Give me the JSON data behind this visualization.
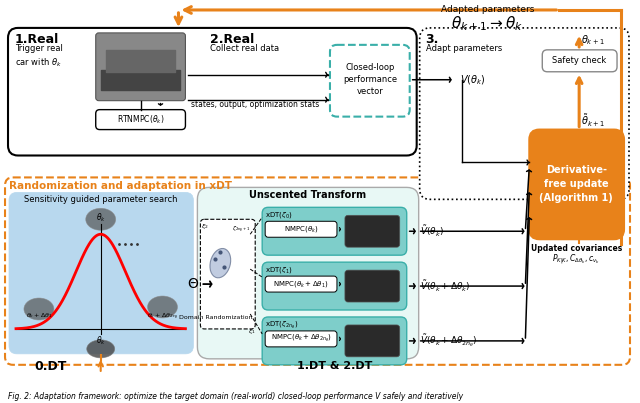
{
  "fig_width": 6.4,
  "fig_height": 4.03,
  "dpi": 100,
  "bg_color": "#ffffff",
  "orange_color": "#E8821A",
  "teal_color": "#3AAFA9",
  "light_teal_bg": "#7ECECA",
  "blue_bg": "#B8D8EE",
  "black_color": "#000000",
  "caption": "Fig. 2: Adaptation framework: optimize the target domain (real-world) closed-loop performance V safely and iteratively",
  "title_adapted": "Adapted parameters",
  "theta_adapt": "$\\theta_{k+1} \\rightarrow \\theta_k$",
  "label_1real": "1.Real",
  "label_1real_sub": "Trigger real\ncar with $\\theta_k$",
  "label_2real": "2.Real",
  "label_2real_sub": "Collect real data",
  "label_3": "3.",
  "label_3_sub": "Adapt parameters",
  "label_rtnmpc": "RTNMPC($\\theta_k$)",
  "label_states": "states, output, optimization stats",
  "label_clpv": "Closed-loop\nperformance\nvector",
  "label_vtheta": "$V(\\theta_k)$",
  "label_safety": "Safety check",
  "label_theta_k1": "$\\theta_{k+1}$",
  "label_theta_tilde": "$\\tilde{\\theta}_{k+1}$",
  "label_deriv_free": "Derivative-\nfree update\n(Algorithm 1)",
  "label_updated_cov": "Updated covariances",
  "label_cov_sub": "$P_{K|K}, C_{\\Delta\\theta_k}, c_{v_k}$",
  "label_rand_title": "Randomization and adaptation in xDT",
  "label_unscented": "Unscented Transform",
  "label_sensitivity": "Sensitivity guided parameter search",
  "label_0dt": "0.DT",
  "label_12dt": "1.DT & 2.DT",
  "label_theta_big": "$\\Theta$",
  "label_domain_rand": "Domain Randomization",
  "label_vtheta_tilde": "$\\tilde{V}(\\theta_k)$",
  "label_vtheta_delta": "$\\tilde{V}(\\theta_k + \\Delta\\theta_k)$",
  "label_vtheta_delta2n": "$\\tilde{V}(\\theta_k + \\Delta\\theta_{2n_\\theta})$",
  "label_nmpc_theta": "NMPC($\\theta_k$)",
  "label_nmpc_delta1": "NMPC($\\theta_k + \\Delta\\theta_1$)",
  "label_nmpc_delta2n": "NMPC($\\theta_k + \\Delta\\theta_{2n_\\theta}$)",
  "label_xdt_z0": "xDT($\\zeta_0$)",
  "label_xdt_z1": "xDT($\\zeta_1$)",
  "label_xdt_z2n": "xDT($\\zeta_{2n_\\theta}$)"
}
